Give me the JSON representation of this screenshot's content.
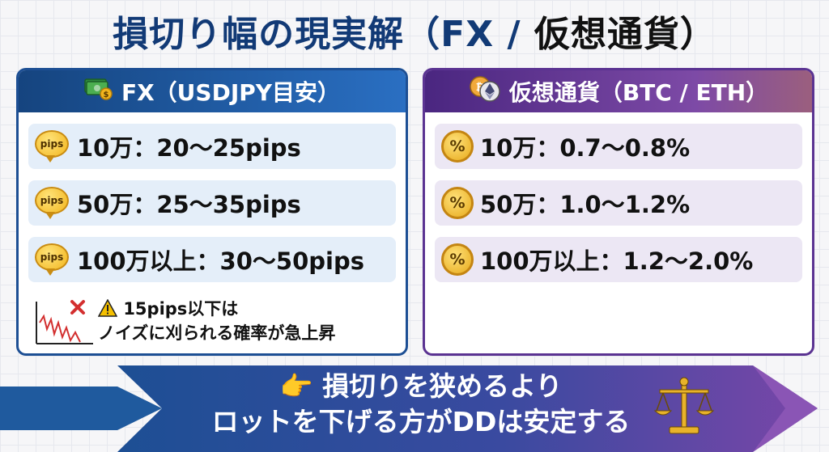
{
  "title": {
    "main": "損切り幅の現実解（FX / ",
    "dark": "仮想通貨）"
  },
  "fx": {
    "icon": "money-icon",
    "header": "FX（USDJPY目安）",
    "badge_label": "pips",
    "rows": [
      {
        "label": "10万：20〜25pips"
      },
      {
        "label": "50万：25〜35pips"
      },
      {
        "label": "100万以上：30〜50pips"
      }
    ],
    "warning": {
      "line1": "15pips以下は",
      "line2": "ノイズに刈られる確率が急上昇"
    }
  },
  "crypto": {
    "icon": "btc-eth-coins-icon",
    "header": "仮想通貨（BTC / ETH）",
    "coin_symbol": "%",
    "rows": [
      {
        "label": "10万：0.7〜0.8%"
      },
      {
        "label": "50万：1.0〜1.2%"
      },
      {
        "label": "100万以上：1.2〜2.0%"
      }
    ]
  },
  "banner": {
    "line1": "損切りを狭めるより",
    "line2": "ロットを下げる方がDDは安定する",
    "pointer_icon": "👉"
  },
  "colors": {
    "fx_accent": "#1d4f94",
    "crypto_accent": "#5b3392",
    "title": "#123a76"
  }
}
